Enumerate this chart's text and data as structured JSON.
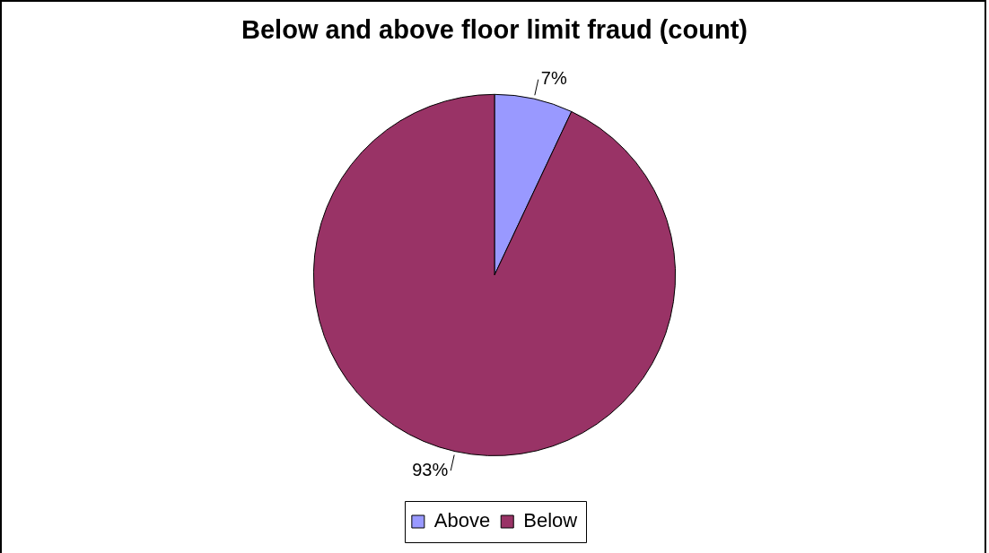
{
  "chart_data": {
    "type": "pie",
    "title": "Below and above floor limit fraud (count)",
    "categories": [
      "Above",
      "Below"
    ],
    "values": [
      7,
      93
    ],
    "colors": [
      "#9999ff",
      "#993366"
    ],
    "value_labels": [
      "7%",
      "93%"
    ],
    "legend": "bottom"
  }
}
